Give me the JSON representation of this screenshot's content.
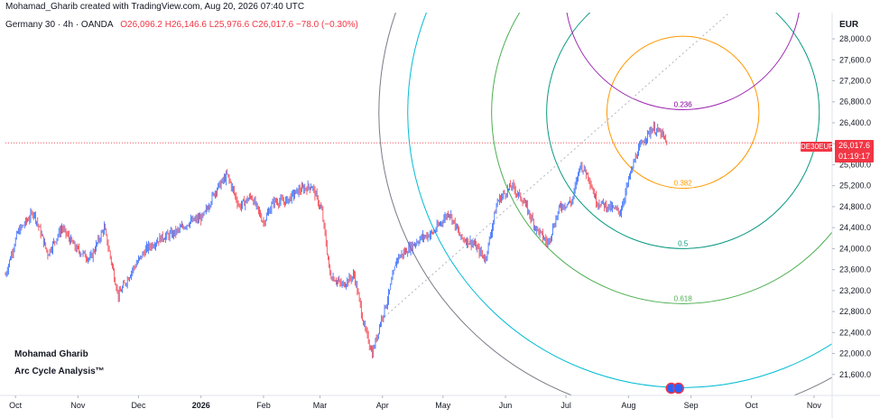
{
  "header": {
    "credit": "Mohamad_Gharib created with TradingView.com, Aug 20, 2026 07:40 UTC",
    "symbol": "Germany 30 · 4h · OANDA",
    "open": "O26,096.2",
    "high": "H26,146.6",
    "low": "L25,976.6",
    "close": "C26,017.6",
    "change": "−78.0 (−0.30%)"
  },
  "watermark": {
    "author": "Mohamad Gharib",
    "title": "Arc Cycle Analysis™"
  },
  "price_axis": {
    "currency": "EUR",
    "last_price": "26,017.6",
    "countdown": "01:19:17",
    "symbol_tag": "DE30EUR"
  },
  "colors": {
    "up": "#2962ff",
    "down": "#f23645",
    "arc_gray": "#787b86",
    "arc_cyan": "#00bcd4",
    "arc_teal": "#089981",
    "arc_green": "#4caf50",
    "arc_orange": "#ff9800",
    "arc_purple": "#9c27b0"
  },
  "chart_data": {
    "type": "candlestick",
    "title": "",
    "xlabel": "",
    "ylabel": "EUR",
    "ylim": [
      21200,
      28500
    ],
    "yticks": [
      21600,
      22000,
      22400,
      22800,
      23200,
      23600,
      24000,
      24400,
      24800,
      25200,
      25600,
      26000,
      26400,
      26800,
      27200,
      27600,
      28000
    ],
    "ytick_labels": [
      "21,600.0",
      "22,000.0",
      "22,400.0",
      "22,800.0",
      "23,200.0",
      "23,600.0",
      "24,000.0",
      "24,400.0",
      "24,800.0",
      "25,200.0",
      "25,600.0",
      "26,000.0",
      "26,400.0",
      "26,800.0",
      "27,200.0",
      "27,600.0",
      "28,000.0"
    ],
    "x_range": [
      "2025-09-26",
      "2026-11-10"
    ],
    "xticks": [
      {
        "date": "2025-10-01",
        "label": "Oct",
        "bold": false
      },
      {
        "date": "2025-11-01",
        "label": "Nov",
        "bold": false
      },
      {
        "date": "2025-12-01",
        "label": "Dec",
        "bold": false
      },
      {
        "date": "2026-01-01",
        "label": "2026",
        "bold": true
      },
      {
        "date": "2026-02-01",
        "label": "Feb",
        "bold": false
      },
      {
        "date": "2026-03-01",
        "label": "Mar",
        "bold": false
      },
      {
        "date": "2026-04-01",
        "label": "Apr",
        "bold": false
      },
      {
        "date": "2026-05-01",
        "label": "May",
        "bold": false
      },
      {
        "date": "2026-06-01",
        "label": "Jun",
        "bold": false
      },
      {
        "date": "2026-07-01",
        "label": "Jul",
        "bold": false
      },
      {
        "date": "2026-08-01",
        "label": "Aug",
        "bold": false
      },
      {
        "date": "2026-09-01",
        "label": "Sep",
        "bold": false
      },
      {
        "date": "2026-10-01",
        "label": "Oct",
        "bold": false
      },
      {
        "date": "2026-11-01",
        "label": "Nov",
        "bold": false
      }
    ],
    "last_price": 26017.6,
    "price_path": [
      [
        "2025-09-26",
        23500
      ],
      [
        "2025-10-02",
        24300
      ],
      [
        "2025-10-10",
        24700
      ],
      [
        "2025-10-17",
        23900
      ],
      [
        "2025-10-24",
        24400
      ],
      [
        "2025-10-31",
        24000
      ],
      [
        "2025-11-07",
        23800
      ],
      [
        "2025-11-14",
        24400
      ],
      [
        "2025-11-21",
        23100
      ],
      [
        "2025-11-28",
        23600
      ],
      [
        "2025-12-05",
        24000
      ],
      [
        "2025-12-12",
        24200
      ],
      [
        "2025-12-19",
        24300
      ],
      [
        "2025-12-26",
        24500
      ],
      [
        "2026-01-02",
        24600
      ],
      [
        "2026-01-08",
        25100
      ],
      [
        "2026-01-14",
        25400
      ],
      [
        "2026-01-20",
        24800
      ],
      [
        "2026-01-26",
        25000
      ],
      [
        "2026-02-01",
        24500
      ],
      [
        "2026-02-06",
        24900
      ],
      [
        "2026-02-12",
        24900
      ],
      [
        "2026-02-18",
        25100
      ],
      [
        "2026-02-25",
        25200
      ],
      [
        "2026-03-02",
        24700
      ],
      [
        "2026-03-06",
        23500
      ],
      [
        "2026-03-12",
        23300
      ],
      [
        "2026-03-18",
        23500
      ],
      [
        "2026-03-23",
        22500
      ],
      [
        "2026-03-27",
        22000
      ],
      [
        "2026-03-31",
        22600
      ],
      [
        "2026-04-04",
        23100
      ],
      [
        "2026-04-08",
        23800
      ],
      [
        "2026-04-14",
        24000
      ],
      [
        "2026-04-20",
        24200
      ],
      [
        "2026-04-26",
        24300
      ],
      [
        "2026-05-04",
        24700
      ],
      [
        "2026-05-10",
        24200
      ],
      [
        "2026-05-16",
        24100
      ],
      [
        "2026-05-22",
        23800
      ],
      [
        "2026-05-28",
        24900
      ],
      [
        "2026-06-04",
        25200
      ],
      [
        "2026-06-10",
        24900
      ],
      [
        "2026-06-16",
        24400
      ],
      [
        "2026-06-22",
        24100
      ],
      [
        "2026-06-28",
        24800
      ],
      [
        "2026-07-04",
        24900
      ],
      [
        "2026-07-08",
        25600
      ],
      [
        "2026-07-12",
        25400
      ],
      [
        "2026-07-16",
        24900
      ],
      [
        "2026-07-22",
        24800
      ],
      [
        "2026-07-28",
        24700
      ],
      [
        "2026-08-01",
        25300
      ],
      [
        "2026-08-05",
        25800
      ],
      [
        "2026-08-09",
        26100
      ],
      [
        "2026-08-13",
        26300
      ],
      [
        "2026-08-17",
        26200
      ],
      [
        "2026-08-20",
        26017.6
      ]
    ],
    "trend_line": {
      "start": [
        "2026-04-02",
        22700
      ],
      "end": [
        "2026-09-20",
        28500
      ],
      "style": "dotted"
    },
    "arcs": {
      "center": [
        "2026-08-28",
        26600
      ],
      "levels": [
        {
          "label": "",
          "bottom_price": 20800,
          "color": "#787b86"
        },
        {
          "label": "",
          "bottom_price": 21350,
          "color": "#00bcd4"
        },
        {
          "label": "0.5",
          "bottom_price": 24000,
          "color": "#089981"
        },
        {
          "label": "0.618",
          "bottom_price": 22950,
          "color": "#4caf50"
        },
        {
          "label": "0.382",
          "bottom_price": 25150,
          "color": "#ff9800"
        },
        {
          "label": "0.236",
          "bottom_price": 26650,
          "color": "#9c27b0"
        }
      ],
      "purple_center": [
        "2026-08-28",
        28900
      ]
    }
  }
}
